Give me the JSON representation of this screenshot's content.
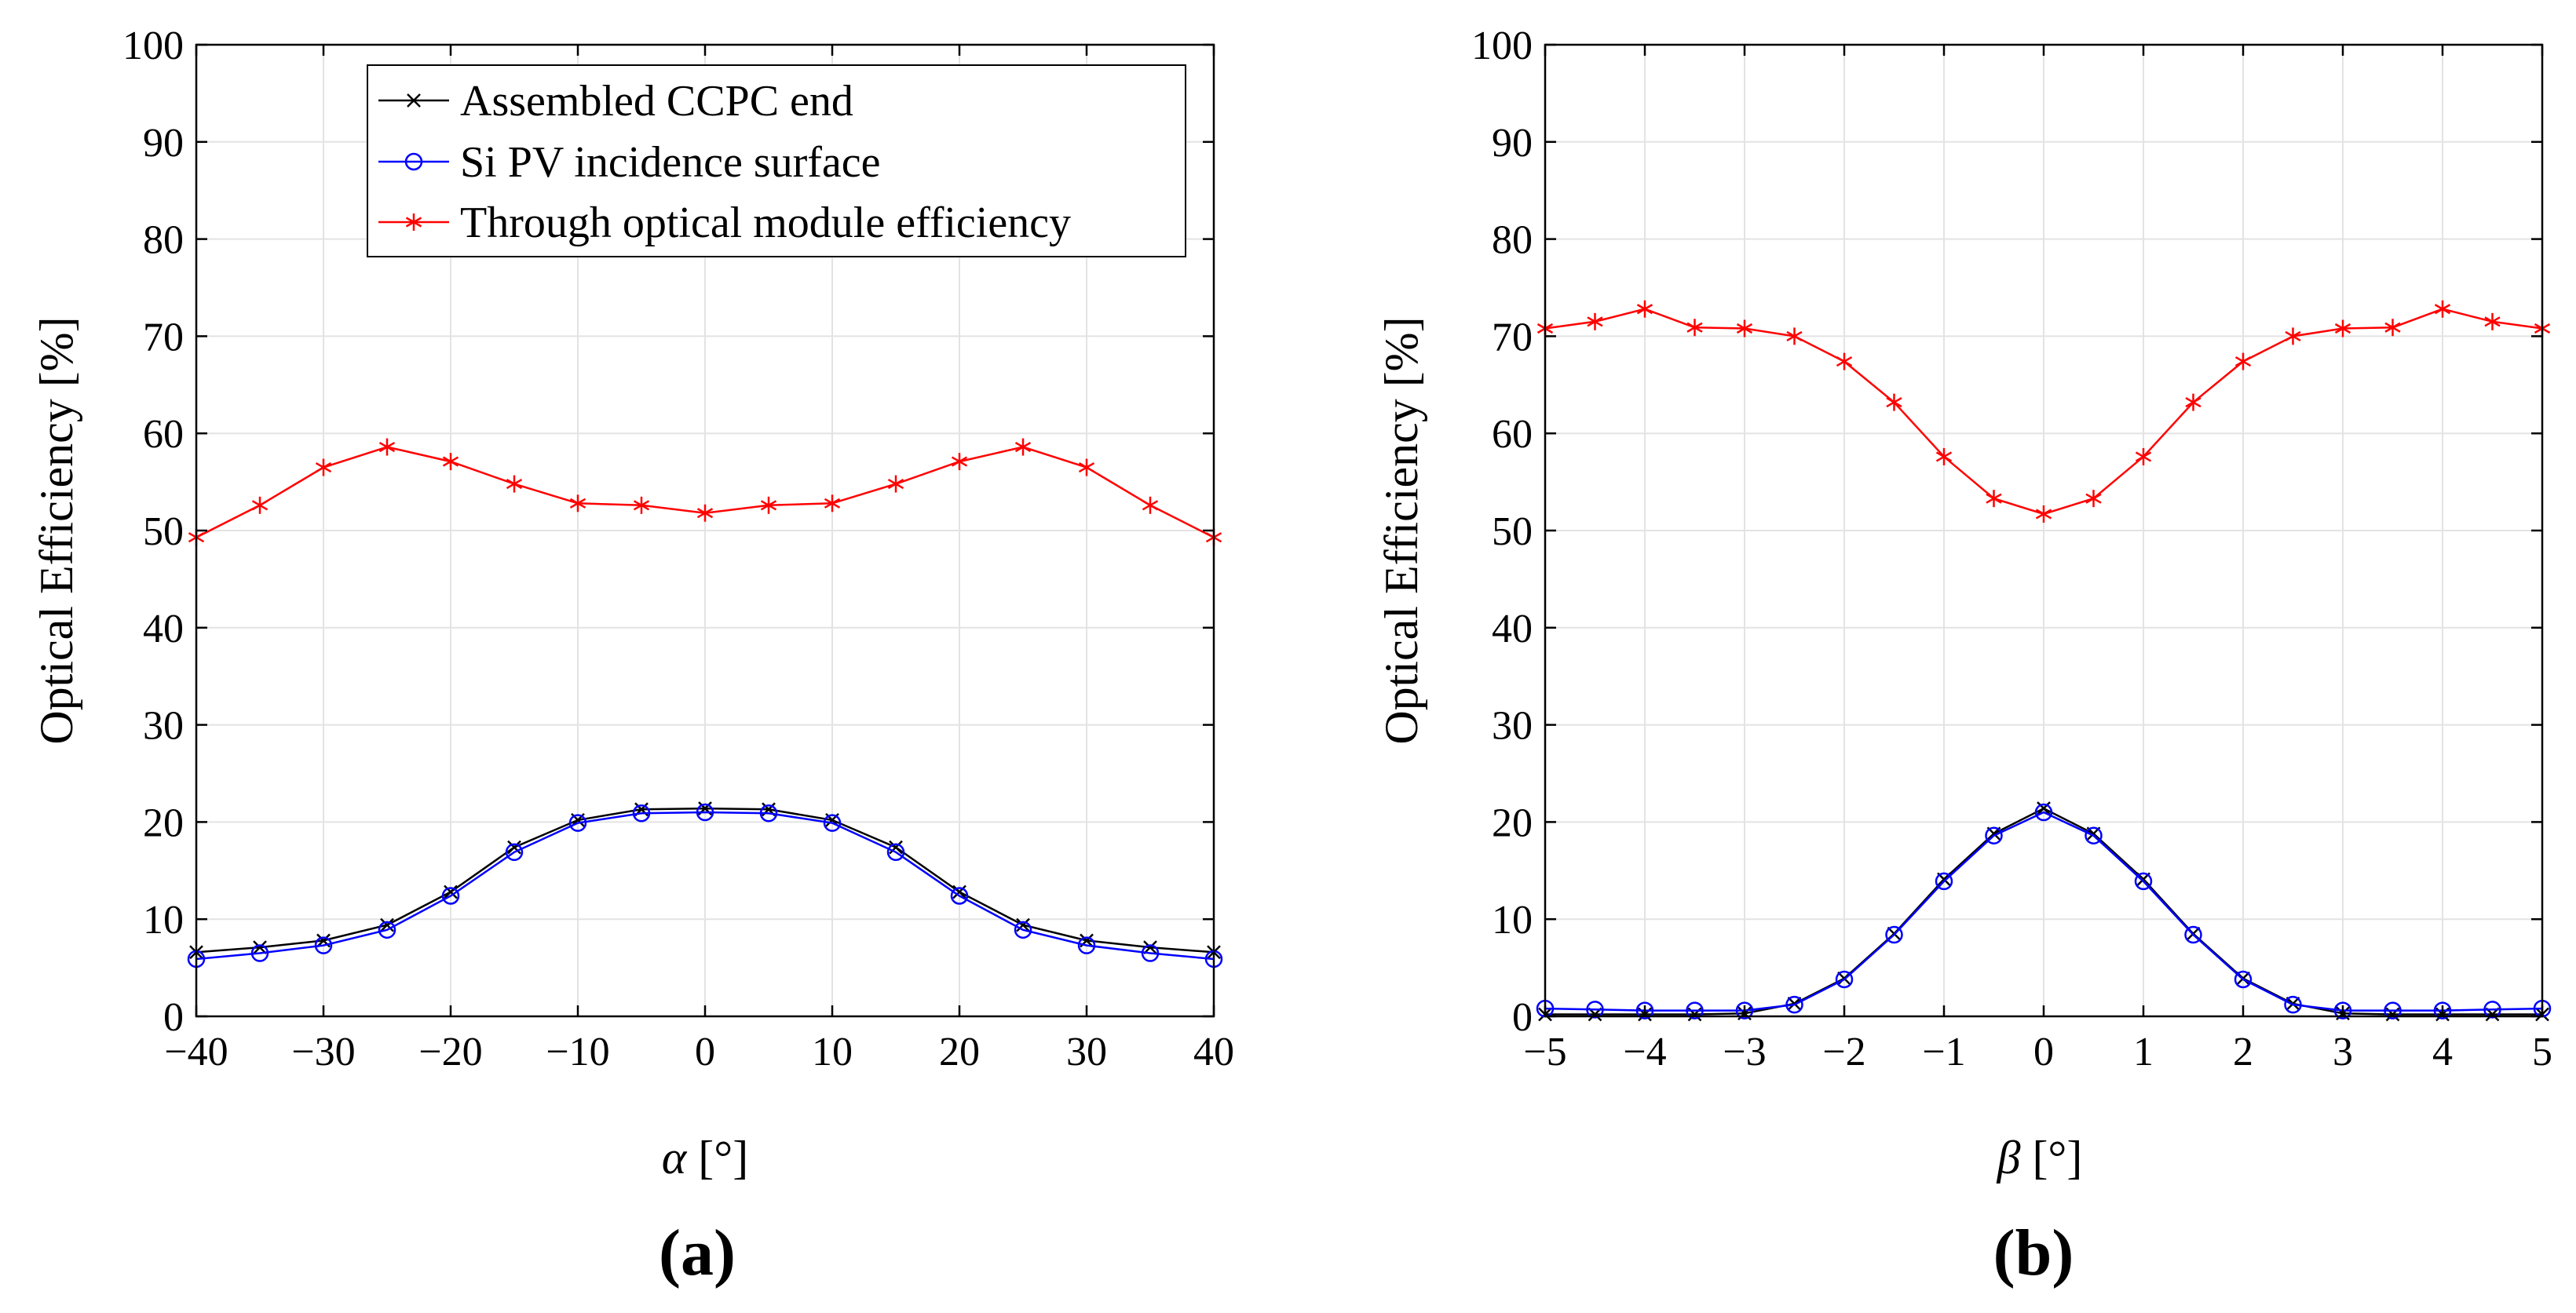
{
  "chart_data": [
    {
      "type": "line",
      "panel_label": "(a)",
      "xlabel_symbol": "α",
      "xlabel_unit": " [°]",
      "ylabel": "Optical Efficiency [%]",
      "xlim": [
        -40,
        40
      ],
      "ylim": [
        0,
        100
      ],
      "xticks": [
        "−40",
        "−30",
        "−20",
        "−10",
        "0",
        "10",
        "20",
        "30",
        "40"
      ],
      "yticks": [
        "0",
        "10",
        "20",
        "30",
        "40",
        "50",
        "60",
        "70",
        "80",
        "90",
        "100"
      ],
      "grid": true,
      "legend_position": "top-center",
      "x": [
        -40,
        -35,
        -30,
        -25,
        -20,
        -15,
        -10,
        -5,
        0,
        5,
        10,
        15,
        20,
        25,
        30,
        35,
        40
      ],
      "series": [
        {
          "name": "Assembled CCPC end",
          "color": "#000000",
          "marker": "x",
          "values": [
            6.6,
            7.1,
            7.8,
            9.4,
            12.8,
            17.4,
            20.2,
            21.3,
            21.4,
            21.3,
            20.2,
            17.4,
            12.8,
            9.4,
            7.8,
            7.1,
            6.6
          ]
        },
        {
          "name": "Si PV incidence surface",
          "color": "#0000ff",
          "marker": "o",
          "values": [
            5.9,
            6.5,
            7.3,
            8.9,
            12.4,
            16.9,
            19.9,
            20.9,
            21.0,
            20.9,
            19.9,
            16.9,
            12.4,
            8.9,
            7.3,
            6.5,
            5.9
          ]
        },
        {
          "name": "Through optical module efficiency",
          "color": "#ff0000",
          "marker": "*",
          "values": [
            49.3,
            52.6,
            56.5,
            58.6,
            57.1,
            54.8,
            52.8,
            52.6,
            51.8,
            52.6,
            52.8,
            54.8,
            57.1,
            58.6,
            56.5,
            52.6,
            49.3
          ]
        }
      ]
    },
    {
      "type": "line",
      "panel_label": "(b)",
      "xlabel_symbol": "β",
      "xlabel_unit": " [°]",
      "ylabel": "Optical Efficiency [%]",
      "xlim": [
        -5,
        5
      ],
      "ylim": [
        0,
        100
      ],
      "xticks": [
        "−5",
        "−4",
        "−3",
        "−2",
        "−1",
        "0",
        "1",
        "2",
        "3",
        "4",
        "5"
      ],
      "yticks": [
        "0",
        "10",
        "20",
        "30",
        "40",
        "50",
        "60",
        "70",
        "80",
        "90",
        "100"
      ],
      "grid": true,
      "x": [
        -5,
        -4.5,
        -4,
        -3.5,
        -3,
        -2.5,
        -2,
        -1.5,
        -1,
        -0.5,
        0,
        0.5,
        1,
        1.5,
        2,
        2.5,
        3,
        3.5,
        4,
        4.5,
        5
      ],
      "series": [
        {
          "name": "Assembled CCPC end",
          "color": "#000000",
          "marker": "x",
          "values": [
            0.2,
            0.2,
            0.2,
            0.2,
            0.3,
            1.3,
            3.9,
            8.5,
            14.1,
            18.8,
            21.4,
            18.8,
            14.1,
            8.5,
            3.9,
            1.3,
            0.3,
            0.2,
            0.2,
            0.2,
            0.2
          ]
        },
        {
          "name": "Si PV incidence surface",
          "color": "#0000ff",
          "marker": "o",
          "values": [
            0.8,
            0.7,
            0.6,
            0.6,
            0.6,
            1.2,
            3.8,
            8.4,
            13.9,
            18.6,
            21.0,
            18.6,
            13.9,
            8.4,
            3.8,
            1.2,
            0.6,
            0.6,
            0.6,
            0.7,
            0.8
          ]
        },
        {
          "name": "Through optical module efficiency",
          "color": "#ff0000",
          "marker": "*",
          "values": [
            70.8,
            71.5,
            72.8,
            70.9,
            70.8,
            70.0,
            67.4,
            63.2,
            57.6,
            53.3,
            51.7,
            53.3,
            57.6,
            63.2,
            67.4,
            70.0,
            70.8,
            70.9,
            72.8,
            71.5,
            70.8
          ]
        }
      ]
    }
  ]
}
